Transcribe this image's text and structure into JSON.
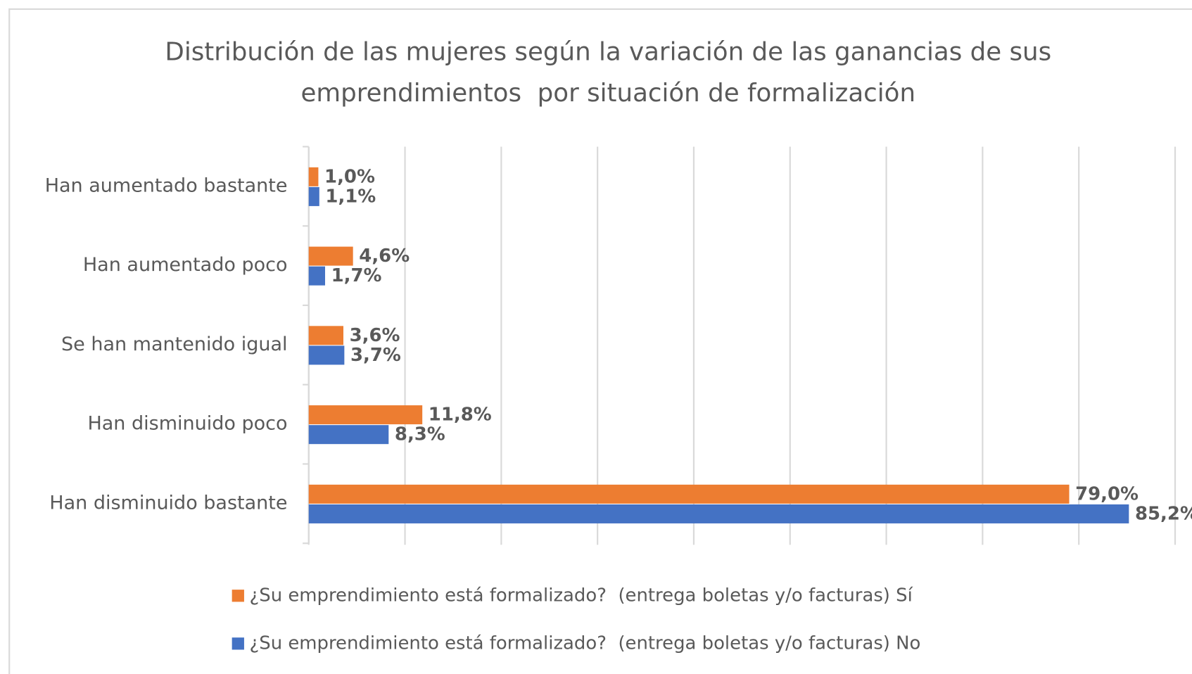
{
  "chart_data": {
    "type": "hbar",
    "title": [
      "Distribución de las mujeres según la variación de las ganancias de sus",
      "emprendimientos  por situación de formalización"
    ],
    "categories": [
      "Han aumentado bastante",
      "Han aumentado poco",
      "Se han mantenido igual",
      "Han disminuido poco",
      "Han disminuido bastante"
    ],
    "series": [
      {
        "name": "¿Su emprendimiento está formalizado?  (entrega boletas y/o facturas) Sí",
        "color": "#ed7d31",
        "values": [
          1.0,
          4.6,
          3.6,
          11.8,
          79.0
        ],
        "value_labels": [
          "1,0%",
          "4,6%",
          "3,6%",
          "11,8%",
          "79,0%"
        ]
      },
      {
        "name": "¿Su emprendimiento está formalizado?  (entrega boletas y/o facturas) No",
        "color": "#4472c4",
        "values": [
          1.1,
          1.7,
          3.7,
          8.3,
          85.2
        ],
        "value_labels": [
          "1,1%",
          "1,7%",
          "3,7%",
          "8,3%",
          "85,2%"
        ]
      }
    ],
    "xlim": [
      0,
      90
    ],
    "xticks": [
      0,
      10,
      20,
      30,
      40,
      50,
      60,
      70,
      80,
      90
    ],
    "grid": true,
    "legend": "bottom"
  }
}
